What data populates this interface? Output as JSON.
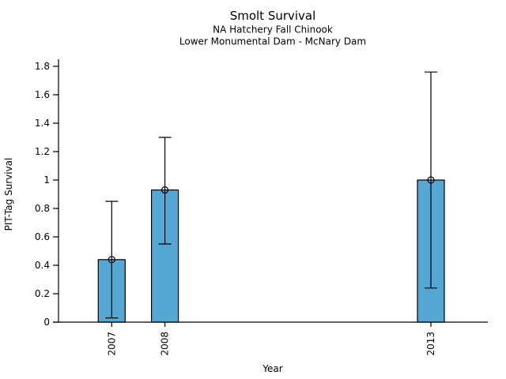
{
  "chart_data": {
    "type": "bar",
    "title": "Smolt Survival",
    "subtitle1": "NA Hatchery Fall Chinook",
    "subtitle2": "Lower Monumental Dam - McNary Dam",
    "xlabel": "Year",
    "ylabel": "PIT-Tag Survival",
    "categories": [
      "2007",
      "2008",
      "2013"
    ],
    "x_numeric": [
      2007,
      2008,
      2013
    ],
    "values": [
      0.44,
      0.93,
      1.0
    ],
    "error_low": [
      0.03,
      0.55,
      0.24
    ],
    "error_high": [
      0.85,
      1.3,
      1.76
    ],
    "ylim": [
      0,
      1.8
    ],
    "yticks": [
      0,
      0.2,
      0.4,
      0.6,
      0.8,
      1,
      1.2,
      1.4,
      1.6,
      1.8
    ],
    "ytick_labels": [
      "0",
      "0.2",
      "0.4",
      "0.6",
      "0.8",
      "1",
      "1.2",
      "1.4",
      "1.6",
      "1.8"
    ],
    "xlim": [
      2006,
      2014.07
    ],
    "grid": false,
    "legend": "none",
    "marker": "open-circle",
    "colors": {
      "bar_fill": "#56a8d4",
      "bar_stroke": "#000000",
      "error_bar": "#000000",
      "axis": "#000000",
      "background": "#ffffff"
    }
  }
}
